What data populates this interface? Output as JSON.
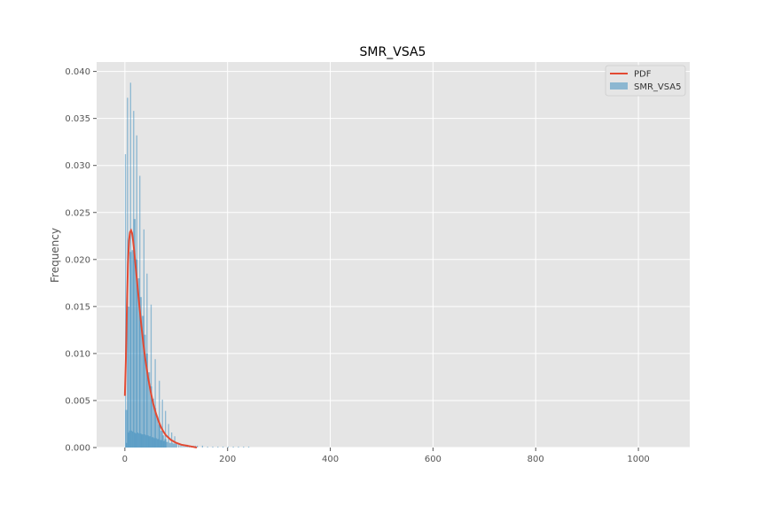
{
  "chart_data": {
    "type": "bar",
    "title": "SMR_VSA5",
    "xlabel": "",
    "ylabel": "Frequency",
    "xlim": [
      -55,
      1100
    ],
    "ylim": [
      0,
      0.041
    ],
    "xticks": [
      0,
      200,
      400,
      600,
      800,
      1000
    ],
    "yticks": [
      0.0,
      0.005,
      0.01,
      0.015,
      0.02,
      0.025,
      0.03,
      0.035,
      0.04
    ],
    "xtick_labels": [
      "0",
      "200",
      "400",
      "600",
      "800",
      "1000"
    ],
    "ytick_labels": [
      "0.000",
      "0.005",
      "0.010",
      "0.015",
      "0.020",
      "0.025",
      "0.030",
      "0.035",
      "0.040"
    ],
    "grid": true,
    "legend_position": "top-right",
    "colors": {
      "pdf": "#e24a33",
      "hist": "#348abd",
      "background": "#e5e5e5",
      "grid": "#ffffff"
    },
    "series": [
      {
        "name": "SMR_VSA5",
        "kind": "histogram",
        "x": [
          0,
          2,
          4,
          6,
          8,
          10,
          12,
          14,
          16,
          18,
          20,
          22,
          24,
          26,
          28,
          30,
          32,
          34,
          36,
          38,
          40,
          42,
          44,
          46,
          48,
          50,
          52,
          54,
          56,
          58,
          60,
          62,
          64,
          66,
          68,
          70,
          72,
          74,
          76,
          78,
          80,
          82,
          84,
          86,
          88,
          90,
          92,
          94,
          96,
          98,
          100,
          104,
          108,
          112,
          116,
          120,
          124,
          128,
          132,
          136,
          140,
          150,
          160,
          170,
          180,
          190,
          200,
          210,
          220,
          230,
          240
        ],
        "values": [
          0.0312,
          0.0005,
          0.0372,
          0.0016,
          0.0018,
          0.0388,
          0.0018,
          0.0017,
          0.0358,
          0.0016,
          0.0015,
          0.0332,
          0.0016,
          0.0015,
          0.0289,
          0.0015,
          0.0014,
          0.0014,
          0.0232,
          0.0014,
          0.0013,
          0.0185,
          0.0013,
          0.0012,
          0.0012,
          0.0152,
          0.0011,
          0.0011,
          0.001,
          0.0094,
          0.001,
          0.0009,
          0.0009,
          0.0071,
          0.0008,
          0.0008,
          0.0051,
          0.0007,
          0.0007,
          0.0039,
          0.0006,
          0.0006,
          0.0025,
          0.0005,
          0.0005,
          0.0016,
          0.0005,
          0.0004,
          0.0012,
          0.0004,
          0.0004,
          0.0004,
          0.0003,
          0.0003,
          0.0003,
          0.0003,
          0.0002,
          0.0002,
          0.0002,
          0.0002,
          0.0002,
          0.0002,
          0.0001,
          0.0001,
          0.0001,
          0.0001,
          0.0001,
          0.0001,
          0.0001,
          0.0001,
          0.0001
        ]
      },
      {
        "name": "SMR_VSA5",
        "kind": "histogram",
        "x": [
          1,
          5,
          9,
          13,
          17,
          21,
          25,
          29,
          33,
          37,
          41,
          45,
          49,
          53,
          57,
          61,
          65,
          69,
          73,
          77
        ],
        "values": [
          0.004,
          0.015,
          0.0208,
          0.021,
          0.0243,
          0.02,
          0.018,
          0.016,
          0.014,
          0.012,
          0.01,
          0.008,
          0.0065,
          0.0052,
          0.0042,
          0.0033,
          0.0025,
          0.0018,
          0.0013,
          0.0009
        ]
      },
      {
        "name": "PDF",
        "kind": "line",
        "x": [
          0,
          2,
          4,
          6,
          8,
          10,
          12,
          14,
          16,
          18,
          20,
          24,
          28,
          32,
          36,
          40,
          45,
          50,
          55,
          60,
          65,
          70,
          75,
          80,
          90,
          100,
          110,
          120,
          130,
          140
        ],
        "values": [
          0.0055,
          0.0095,
          0.015,
          0.0195,
          0.022,
          0.0229,
          0.0231,
          0.0228,
          0.022,
          0.021,
          0.0198,
          0.0175,
          0.0152,
          0.013,
          0.011,
          0.0093,
          0.0075,
          0.006,
          0.0047,
          0.0037,
          0.0029,
          0.0022,
          0.0017,
          0.0013,
          0.0008,
          0.0005,
          0.0003,
          0.0002,
          0.0001,
          0.0
        ]
      }
    ]
  }
}
